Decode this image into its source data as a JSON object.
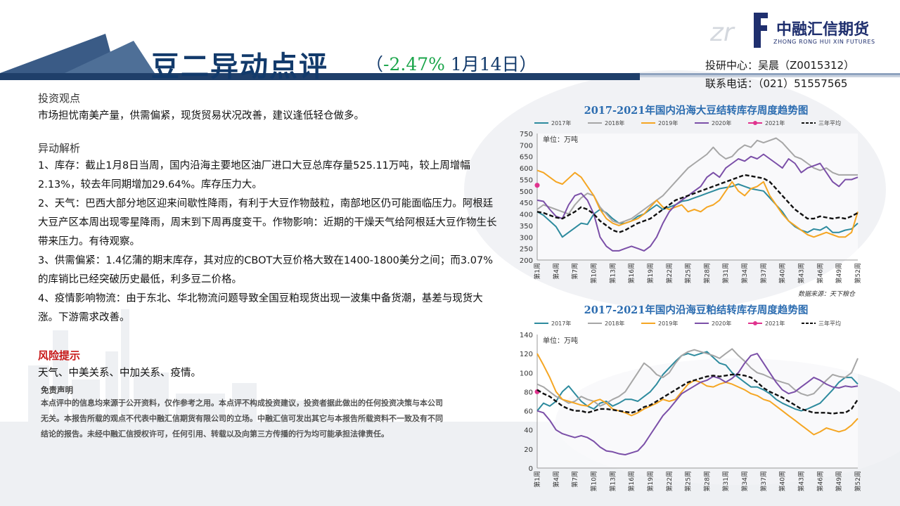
{
  "header": {
    "title": "豆二异动点评",
    "subtitle_open": "（",
    "change": "-2.47%",
    "date": " 1月14日）",
    "logo_name": "中融汇信期货",
    "logo_en": "ZHONG RONG HUI XIN FUTURES",
    "logo_mark": "zr"
  },
  "contact": {
    "researcher": "投研中心：吴晨（Z0015312）",
    "phone": "联系电话：（021）51557565"
  },
  "content": {
    "view_heading": "投资观点",
    "view_text": "市场担忧南美产量，供需偏紧，现货贸易状况改善，建议逢低轻仓做多。",
    "analysis_heading": "异动解析",
    "items": [
      "1、库存：截止1月8日当周，国内沿海主要地区油厂进口大豆总库存量525.11万吨，较上周增幅2.13%，较去年同期增加29.64%。库存压力大。",
      "2、天气：巴西大部分地区迎来间歇性降雨，有利于大豆作物鼓粒，南部地区仍可能面临压力。阿根廷大豆产区本周出现零星降雨，周末到下周再度变干。作物影响：近期的干燥天气给阿根廷大豆作物生长带来压力。有待观察。",
      "3、供需偏紧：1.4亿蒲的期末库存，其对应的CBOT大豆价格大致在1400-1800美分之间；而3.07%的库销比已经突破历史最低，利多豆二价格。",
      "4、疫情影响物流：由于东北、华北物流问题导致全国豆粕现货出现一波集中备货潮，基差与现货大涨。下游需求改善。"
    ],
    "risk_heading": "风险提示",
    "risk_text": "天气、中美关系、中加关系、疫情。",
    "disclaimer_heading": "免责声明",
    "disclaimer_text": "本点评中的信息均来源于公开资料，仅作参考之用。本点评不构成投资建议，投资者据此做出的任何投资决策与本公司无关。本报告所载的观点不代表中融汇信期货有限公司的立场。中融汇信可发出其它与本报告所载资料不一致及有不同结论的报告。未经中融汇信授权许可，任何引用、转载以及向第三方传播的行为均可能承担法律责任。"
  },
  "colors": {
    "y2017": "#2e8b9e",
    "y2018": "#a6a6a6",
    "y2019": "#f5a623",
    "y2020": "#7b4fa8",
    "y2021": "#e0338e",
    "avg5": "#111111"
  },
  "chart_data": [
    {
      "type": "line",
      "title": "2017-2021年国内沿海大豆结转库存周度趋势图",
      "unit_label": "单位：万吨",
      "source": "数据来源：天下粮仓",
      "ylim": [
        200,
        750
      ],
      "yticks": [
        200,
        250,
        300,
        350,
        400,
        450,
        500,
        550,
        600,
        650,
        700,
        750
      ],
      "x_labels": [
        "第1周",
        "第4周",
        "第7周",
        "第10周",
        "第13周",
        "第16周",
        "第19周",
        "第22周",
        "第25周",
        "第28周",
        "第31周",
        "第34周",
        "第37周",
        "第40周",
        "第43周",
        "第46周",
        "第49周",
        "第52周"
      ],
      "n_weeks": 52,
      "legend": [
        "2017年",
        "2018年",
        "2019年",
        "2020年",
        "2021年",
        "三年平均"
      ],
      "series": [
        {
          "name": "2017年",
          "color": "#2e8b9e",
          "values": [
            410,
            395,
            370,
            345,
            300,
            320,
            340,
            360,
            355,
            400,
            420,
            405,
            380,
            360,
            360,
            370,
            390,
            400,
            420,
            440,
            420,
            430,
            440,
            455,
            460,
            470,
            480,
            490,
            500,
            510,
            515,
            520,
            530,
            520,
            510,
            505,
            500,
            470,
            440,
            410,
            370,
            345,
            330,
            320,
            335,
            330,
            345,
            320,
            320,
            330,
            335,
            360
          ]
        },
        {
          "name": "2018年",
          "color": "#a6a6a6",
          "values": [
            420,
            440,
            430,
            420,
            410,
            400,
            440,
            470,
            490,
            480,
            430,
            400,
            370,
            360,
            370,
            380,
            400,
            420,
            440,
            460,
            480,
            510,
            540,
            570,
            600,
            620,
            640,
            660,
            690,
            660,
            640,
            650,
            680,
            700,
            690,
            720,
            710,
            720,
            730,
            710,
            680,
            650,
            640,
            620,
            600,
            590,
            600,
            580,
            570,
            570,
            570,
            570
          ]
        },
        {
          "name": "2019年",
          "color": "#f5a623",
          "values": [
            590,
            580,
            560,
            540,
            530,
            555,
            580,
            560,
            520,
            480,
            420,
            380,
            360,
            350,
            360,
            370,
            380,
            400,
            430,
            460,
            430,
            420,
            430,
            440,
            410,
            420,
            410,
            430,
            440,
            460,
            500,
            540,
            500,
            480,
            510,
            520,
            540,
            480,
            440,
            400,
            370,
            350,
            330,
            310,
            300,
            310,
            320,
            310,
            300,
            300,
            320,
            410
          ]
        },
        {
          "name": "2020年",
          "color": "#7b4fa8",
          "values": [
            460,
            455,
            420,
            390,
            380,
            440,
            480,
            490,
            460,
            400,
            300,
            260,
            240,
            240,
            250,
            260,
            250,
            240,
            260,
            300,
            360,
            410,
            440,
            460,
            480,
            500,
            520,
            560,
            580,
            560,
            600,
            620,
            640,
            630,
            650,
            640,
            660,
            640,
            620,
            600,
            640,
            620,
            580,
            600,
            610,
            620,
            580,
            540,
            520,
            550,
            550,
            560
          ]
        },
        {
          "name": "2021年",
          "color": "#e0338e",
          "values": [
            525
          ]
        },
        {
          "name": "三年平均",
          "color": "#111111",
          "values": [
            410,
            405,
            395,
            385,
            380,
            395,
            410,
            430,
            420,
            400,
            370,
            350,
            330,
            320,
            330,
            345,
            360,
            370,
            380,
            400,
            420,
            440,
            460,
            470,
            480,
            490,
            500,
            510,
            520,
            530,
            540,
            550,
            560,
            570,
            565,
            560,
            555,
            540,
            510,
            480,
            450,
            420,
            400,
            380,
            380,
            390,
            385,
            380,
            385,
            380,
            390,
            405
          ]
        }
      ]
    },
    {
      "type": "line",
      "title": "2017-2021年国内沿海豆粕结转库存周度趋势图",
      "unit_label": "单位：万吨",
      "source": "",
      "ylim": [
        0,
        140
      ],
      "yticks": [
        0,
        20,
        40,
        60,
        80,
        100,
        120,
        140
      ],
      "x_labels": [
        "第1周",
        "第4周",
        "第7周",
        "第10周",
        "第13周",
        "第16周",
        "第19周",
        "第22周",
        "第25周",
        "第28周",
        "第31周",
        "第34周",
        "第37周",
        "第40周",
        "第43周",
        "第46周",
        "第49周",
        "第52周"
      ],
      "n_weeks": 52,
      "legend": [
        "2017年",
        "2018年",
        "2019年",
        "2020年",
        "2021年",
        "三年平均"
      ],
      "series": [
        {
          "name": "2017年",
          "color": "#2e8b9e",
          "values": [
            60,
            68,
            65,
            70,
            80,
            86,
            78,
            70,
            65,
            62,
            68,
            70,
            65,
            68,
            72,
            72,
            70,
            75,
            80,
            88,
            98,
            105,
            112,
            118,
            120,
            118,
            120,
            122,
            116,
            110,
            108,
            100,
            95,
            90,
            85,
            85,
            82,
            78,
            72,
            68,
            65,
            62,
            60,
            62,
            65,
            68,
            75,
            82,
            90,
            95,
            95,
            88
          ]
        },
        {
          "name": "2018年",
          "color": "#a6a6a6",
          "values": [
            88,
            85,
            80,
            75,
            72,
            68,
            70,
            75,
            72,
            70,
            65,
            68,
            72,
            75,
            80,
            90,
            100,
            110,
            105,
            98,
            95,
            100,
            110,
            118,
            122,
            124,
            122,
            120,
            118,
            115,
            120,
            125,
            118,
            112,
            105,
            100,
            98,
            95,
            92,
            90,
            88,
            82,
            78,
            76,
            78,
            85,
            92,
            98,
            96,
            95,
            100,
            115
          ]
        },
        {
          "name": "2019年",
          "color": "#f5a623",
          "values": [
            120,
            108,
            95,
            80,
            72,
            70,
            68,
            66,
            65,
            70,
            72,
            68,
            62,
            60,
            58,
            55,
            58,
            62,
            65,
            68,
            72,
            70,
            72,
            80,
            88,
            92,
            90,
            86,
            85,
            88,
            90,
            88,
            85,
            82,
            78,
            76,
            72,
            70,
            65,
            60,
            55,
            50,
            45,
            40,
            35,
            38,
            42,
            40,
            38,
            40,
            45,
            52
          ]
        },
        {
          "name": "2020年",
          "color": "#7b4fa8",
          "values": [
            60,
            58,
            50,
            40,
            36,
            34,
            32,
            34,
            32,
            28,
            22,
            18,
            17,
            15,
            14,
            16,
            18,
            25,
            35,
            45,
            55,
            62,
            70,
            78,
            82,
            86,
            90,
            92,
            96,
            94,
            90,
            94,
            100,
            110,
            118,
            120,
            110,
            100,
            90,
            82,
            78,
            80,
            85,
            90,
            95,
            92,
            88,
            85,
            84,
            86,
            85,
            86
          ]
        },
        {
          "name": "2021年",
          "color": "#e0338e",
          "values": [
            80
          ]
        },
        {
          "name": "三年平均",
          "color": "#111111",
          "values": [
            82,
            78,
            75,
            70,
            65,
            62,
            60,
            60,
            58,
            60,
            62,
            62,
            61,
            60,
            59,
            58,
            60,
            64,
            66,
            70,
            74,
            78,
            82,
            86,
            90,
            92,
            94,
            96,
            97,
            96,
            97,
            98,
            98,
            97,
            95,
            90,
            84,
            80,
            77,
            74,
            70,
            66,
            62,
            60,
            58,
            58,
            58,
            57,
            58,
            58,
            62,
            72
          ]
        }
      ]
    }
  ]
}
